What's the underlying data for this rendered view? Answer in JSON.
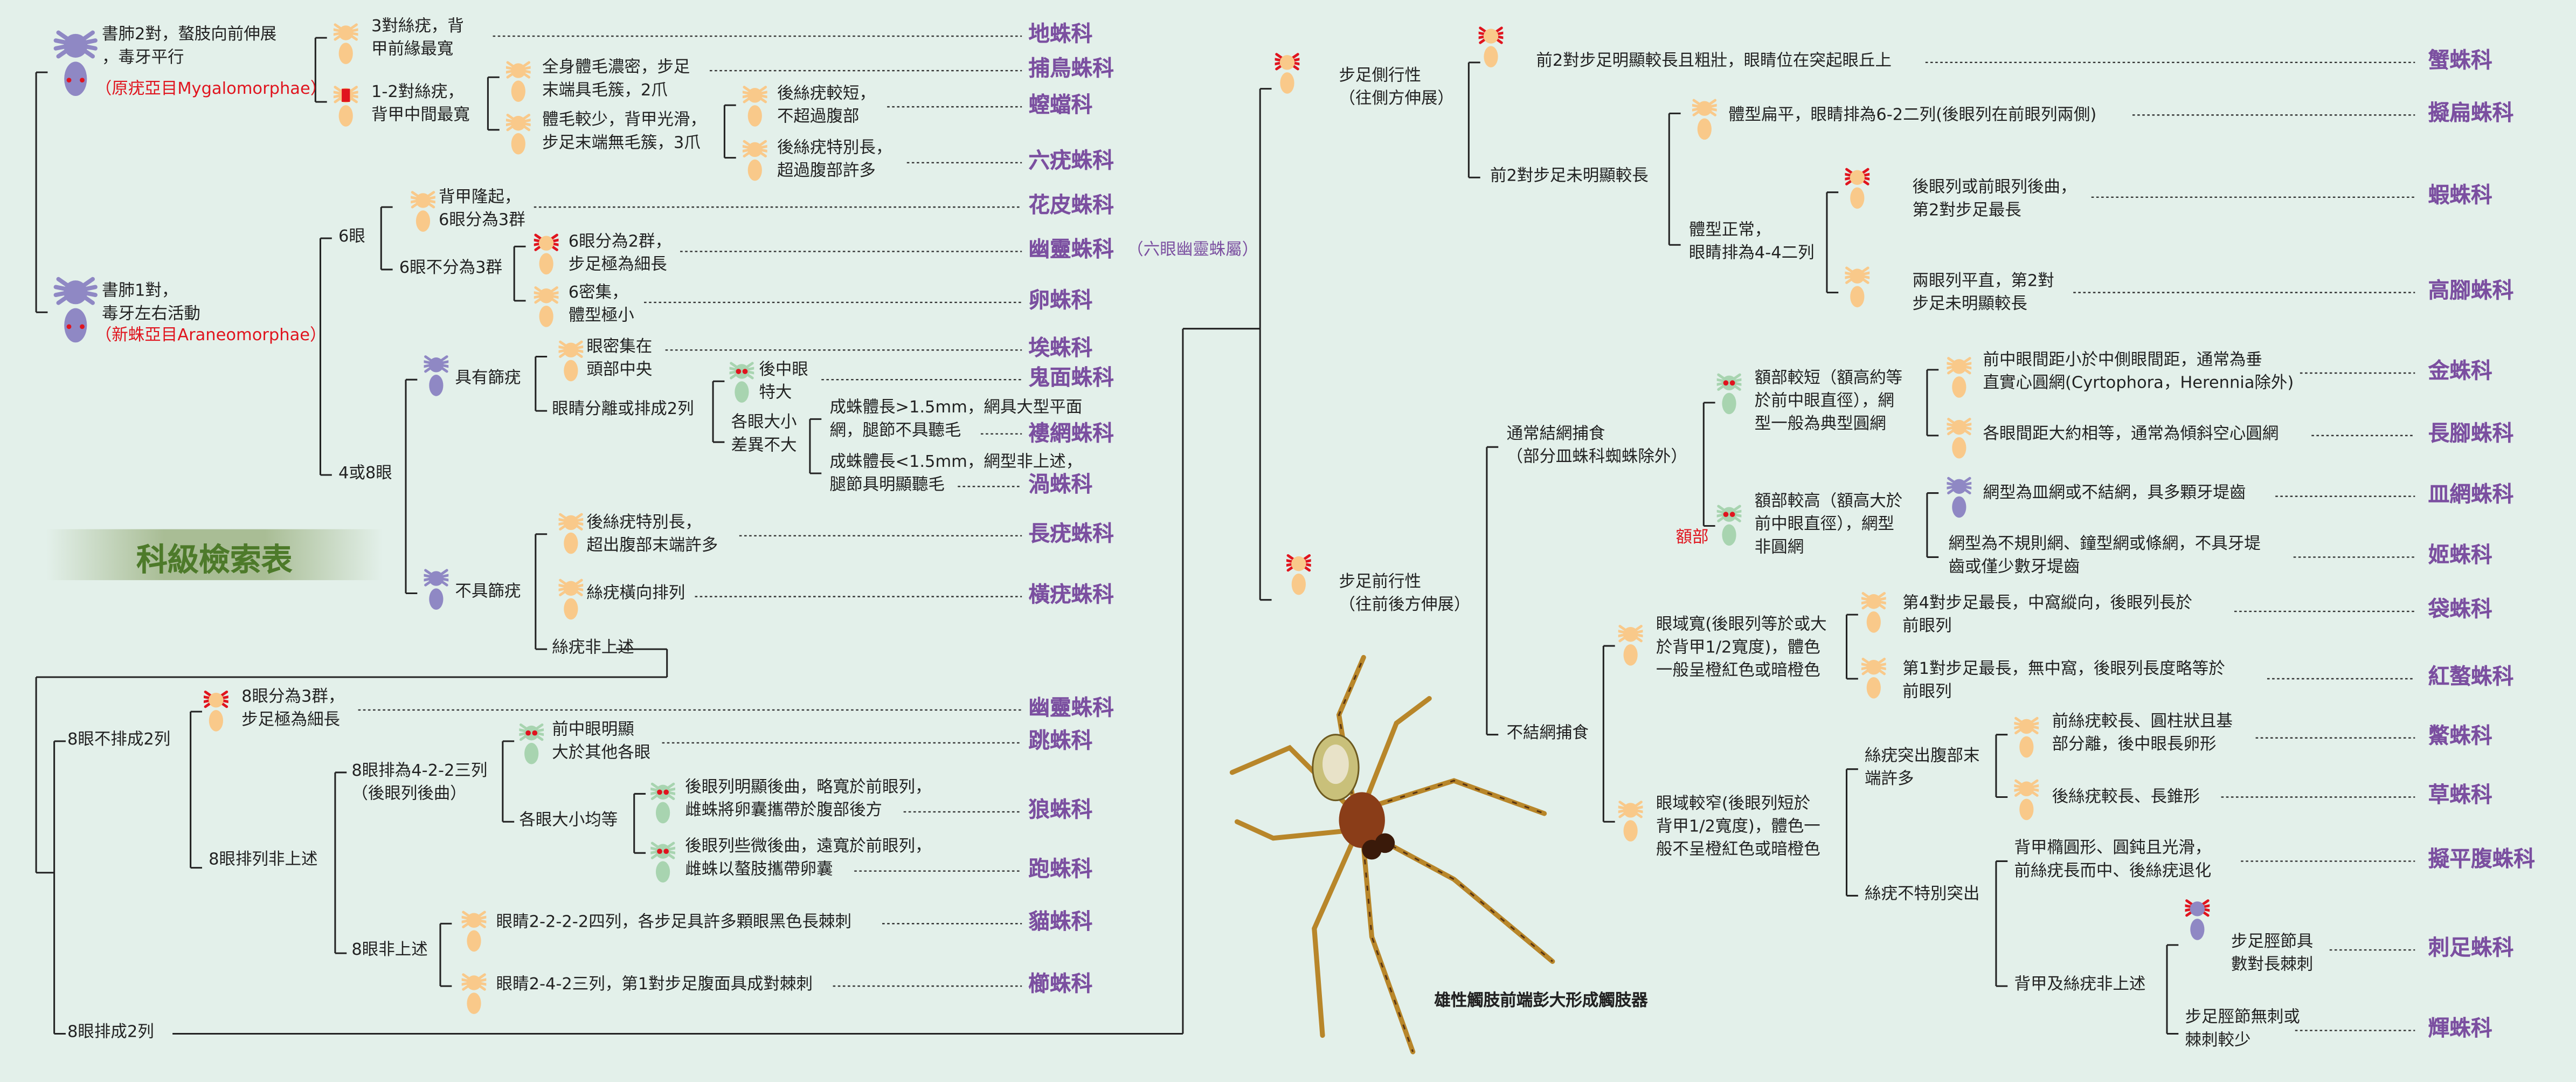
{
  "title": "科級檢索表",
  "photo_caption": "雄性觸肢前端彭大形成觸肢器",
  "steps": [
    "書肺2對，螯肢向前伸展\n，毒牙平行",
    "（原疣亞目Mygalomorphae）",
    "3對絲疣，背\n甲前緣最寬",
    "1-2對絲疣，\n背甲中間最寬",
    "全身體毛濃密，步足\n末端具毛簇，2爪",
    "體毛較少，背甲光滑，\n步足末端無毛簇，3爪",
    "後絲疣較短，\n不超過腹部",
    "後絲疣特別長，\n超過腹部許多",
    "書肺1對，\n毒牙左右活動",
    "（新蛛亞目Araneomorphae）",
    "6眼",
    "4或8眼",
    "背甲隆起，\n6眼分為3群",
    "6眼不分為3群",
    "6眼分為2群，\n步足極為細長",
    "6密集，\n體型極小",
    "具有篩疣",
    "眼密集在\n頭部中央",
    "眼睛分離或排成2列",
    "後中眼\n特大",
    "各眼大小\n差異不大",
    "成蛛體長>1.5mm，網具大型平面\n網，腿節不具聽毛",
    "成蛛體長<1.5mm，網型非上述，\n腿節具明顯聽毛",
    "不具篩疣",
    "後絲疣特別長，\n超出腹部末端許多",
    "絲疣橫向排列",
    "絲疣非上述",
    "8眼不排成2列",
    "8眼分為3群，\n步足極為細長",
    "8眼排列非上述",
    "8眼排為4-2-2三列\n（後眼列後曲）",
    "前中眼明顯\n大於其他各眼",
    "各眼大小均等",
    "後眼列明顯後曲，略寬於前眼列，\n雌蛛將卵囊攜帶於腹部後方",
    "後眼列些微後曲，遠寬於前眼列，\n雌蛛以螯肢攜帶卵囊",
    "8眼非上述",
    "眼睛2-2-2-2四列，各步足具許多顆眼黑色長棘刺",
    "眼睛2-4-2三列，第1對步足腹面具成對棘刺",
    "8眼排成2列",
    "步足側行性\n（往側方伸展）",
    "前2對步足明顯較長且粗壯，眼睛位在突起眼丘上",
    "前2對步足未明顯較長",
    "體型扁平，眼睛排為6-2二列(後眼列在前眼列兩側)",
    "體型正常，\n眼睛排為4-4二列",
    "後眼列或前眼列後曲，\n第2對步足最長",
    "兩眼列平直，第2對\n步足未明顯較長",
    "步足前行性\n（往前後方伸展）",
    "通常結網捕食\n（部分皿蛛科蜘蛛除外）",
    "額部較短（額高約等\n於前中眼直徑），網\n型一般為典型圓網",
    "額部較高（額高大於\n前中眼直徑），網型\n非圓網",
    "額部",
    "前中眼間距小於中側眼間距，通常為垂\n直實心圓網(Cyrtophora，Herennia除外)",
    "各眼間距大約相等，通常為傾斜空心圓網",
    "網型為皿網或不結網，具多顆牙堤齒",
    "網型為不規則網、鐘型網或條網，不具牙堤\n齒或僅少數牙堤齒",
    "不結網捕食",
    "眼域寬(後眼列等於或大\n於背甲1/2寬度)，體色\n一般呈橙紅色或暗橙色",
    "眼域較窄(後眼列短於\n背甲1/2寬度)，體色一\n般不呈橙紅色或暗橙色",
    "第4對步足最長，中窩縱向，後眼列長於\n前眼列",
    "第1對步足最長，無中窩，後眼列長度略等於\n前眼列",
    "絲疣突出腹部末\n端許多",
    "絲疣不特別突出",
    "前絲疣較長、圓柱狀且基\n部分離，後中眼長卵形",
    "後絲疣較長、長錐形",
    "背甲橢圓形、圓鈍且光滑，\n前絲疣長而中、後絲疣退化",
    "背甲及絲疣非上述",
    "步足脛節具\n數對長棘刺",
    "步足脛節無刺或\n棘刺較少"
  ],
  "families": [
    "地蛛科",
    "捕鳥蛛科",
    "螲蟷科",
    "六疣蛛科",
    "花皮蛛科",
    "幽靈蛛科",
    "卵蛛科",
    "埃蛛科",
    "鬼面蛛科",
    "褸網蛛科",
    "渦蛛科",
    "長疣蛛科",
    "橫疣蛛科",
    "幽靈蛛科",
    "跳蛛科",
    "狼蛛科",
    "跑蛛科",
    "貓蛛科",
    "櫛蛛科",
    "蟹蛛科",
    "擬扁蛛科",
    "蝦蛛科",
    "高腳蛛科",
    "金蛛科",
    "長腳蛛科",
    "皿網蛛科",
    "姬蛛科",
    "袋蛛科",
    "紅螯蛛科",
    "鱉蛛科",
    "草蛛科",
    "擬平腹蛛科",
    "刺足蛛科",
    "輝蛛科"
  ],
  "family_note": "（六眼幽靈蛛屬）",
  "colors": {
    "background": "#e3f0ea",
    "family_label": "#7b4fa0",
    "highlight_red": "#e0141e",
    "icon_orange": "#f9c98a",
    "icon_purple": "#8f88c4",
    "icon_green": "#a8d4b0",
    "title_green": "#4d7a2a"
  },
  "icons": [
    "spider-orange-icon",
    "spider-purple-icon",
    "spider-green-icon",
    "spider-photo"
  ]
}
